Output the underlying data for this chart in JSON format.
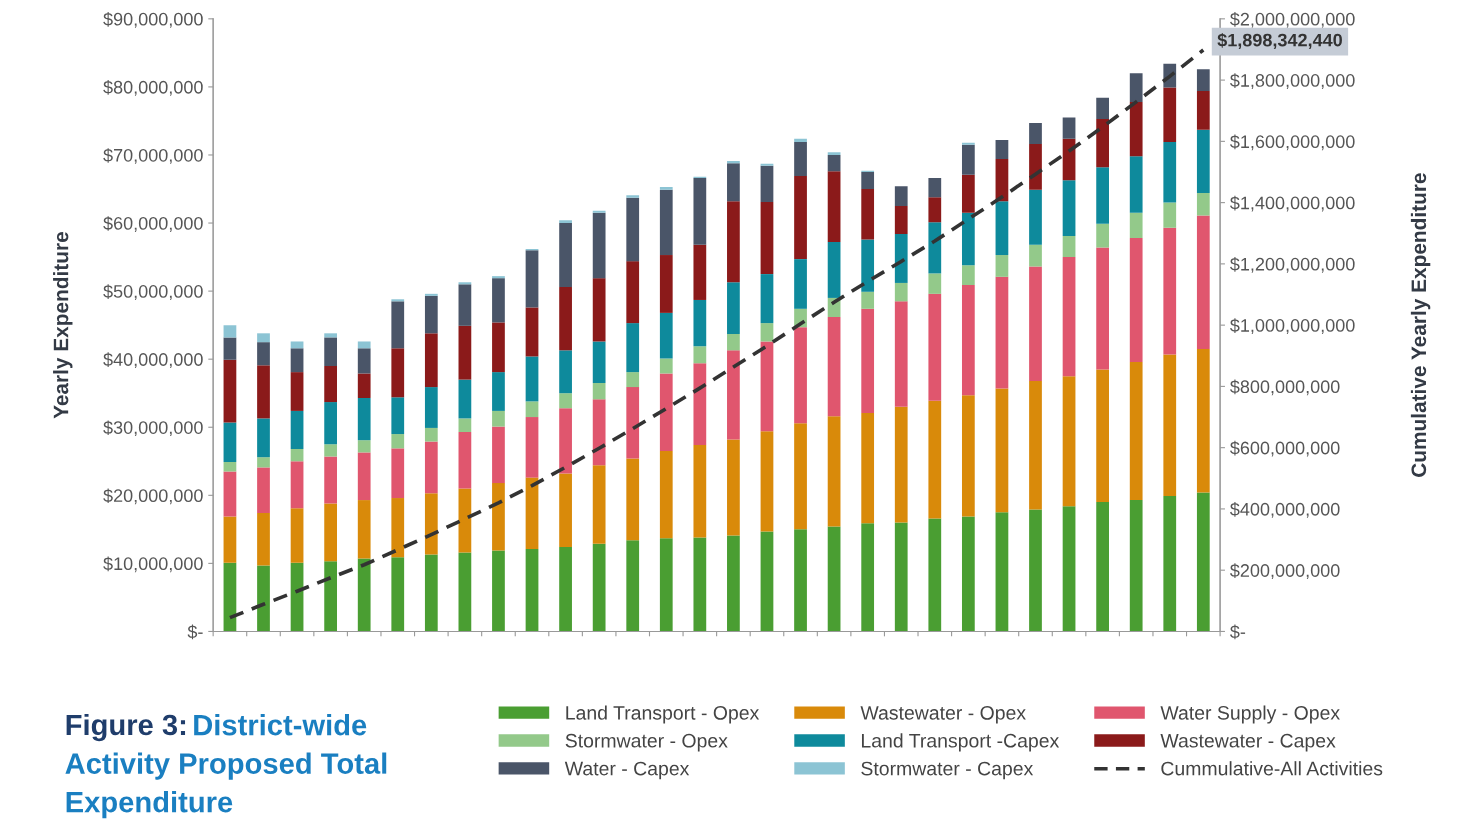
{
  "chart_data": {
    "type": "bar",
    "stacked": true,
    "title": "Figure 3:",
    "subtitle": "District-wide\nActivity Proposed Total\nExpenditure",
    "ylabel": "Yearly Expenditure",
    "y2label": "Cumulative Yearly Expenditure",
    "categories": [
      null,
      null,
      null,
      null,
      null,
      null,
      null,
      null,
      null,
      null,
      null,
      null,
      null,
      null,
      null,
      null,
      null,
      null,
      null,
      null,
      null,
      null,
      null,
      null,
      null,
      null,
      null,
      null,
      null,
      null
    ],
    "ylim": [
      0,
      90000000
    ],
    "yticks": [
      {
        "value": 0,
        "label": "$-"
      },
      {
        "value": 10000000,
        "label": "$10,000,000"
      },
      {
        "value": 20000000,
        "label": "$20,000,000"
      },
      {
        "value": 30000000,
        "label": "$30,000,000"
      },
      {
        "value": 40000000,
        "label": "$40,000,000"
      },
      {
        "value": 50000000,
        "label": "$50,000,000"
      },
      {
        "value": 60000000,
        "label": "$60,000,000"
      },
      {
        "value": 70000000,
        "label": "$70,000,000"
      },
      {
        "value": 80000000,
        "label": "$80,000,000"
      },
      {
        "value": 90000000,
        "label": "$90,000,000"
      }
    ],
    "y2lim": [
      0,
      2000000000
    ],
    "y2ticks": [
      {
        "value": 0,
        "label": "$-"
      },
      {
        "value": 200000000,
        "label": "$200,000,000"
      },
      {
        "value": 400000000,
        "label": "$400,000,000"
      },
      {
        "value": 600000000,
        "label": "$600,000,000"
      },
      {
        "value": 800000000,
        "label": "$800,000,000"
      },
      {
        "value": 1000000000,
        "label": "$1,000,000,000"
      },
      {
        "value": 1200000000,
        "label": "$1,200,000,000"
      },
      {
        "value": 1400000000,
        "label": "$1,400,000,000"
      },
      {
        "value": 1600000000,
        "label": "$1,600,000,000"
      },
      {
        "value": 1800000000,
        "label": "$1,800,000,000"
      },
      {
        "value": 2000000000,
        "label": "$2,000,000,000"
      }
    ],
    "grid": false,
    "legend": "bottom",
    "series": [
      {
        "name": "Land Transport - Opex",
        "color": "#4a9e32",
        "values": [
          10100000,
          9700000,
          10100000,
          10300000,
          10700000,
          10900000,
          11300000,
          11600000,
          11900000,
          12100000,
          12400000,
          12900000,
          13400000,
          13700000,
          13800000,
          14100000,
          14700000,
          15000000,
          15400000,
          15900000,
          16000000,
          16600000,
          16900000,
          17500000,
          17900000,
          18400000,
          19000000,
          19300000,
          19900000,
          20400000
        ]
      },
      {
        "name": "Wastewater - Opex",
        "color": "#d98a0a",
        "values": [
          6800000,
          7700000,
          8000000,
          8500000,
          8600000,
          8700000,
          9000000,
          9400000,
          9900000,
          10500000,
          10800000,
          11500000,
          12000000,
          12800000,
          13600000,
          14100000,
          14700000,
          15600000,
          16200000,
          16200000,
          17000000,
          17300000,
          17800000,
          18200000,
          18900000,
          19100000,
          19500000,
          20300000,
          20800000,
          21100000
        ]
      },
      {
        "name": "Water Supply - Opex",
        "color": "#e0566e",
        "values": [
          6600000,
          6700000,
          6900000,
          6900000,
          7000000,
          7300000,
          7600000,
          8300000,
          8300000,
          8900000,
          9600000,
          9700000,
          10500000,
          11400000,
          12000000,
          13100000,
          13200000,
          14100000,
          14600000,
          15300000,
          15500000,
          15700000,
          16200000,
          16400000,
          16800000,
          17500000,
          17900000,
          18200000,
          18600000,
          19600000
        ]
      },
      {
        "name": "Stormwater - Opex",
        "color": "#93c98a",
        "values": [
          1400000,
          1500000,
          1800000,
          1800000,
          1800000,
          2100000,
          2000000,
          2000000,
          2300000,
          2300000,
          2200000,
          2400000,
          2200000,
          2200000,
          2500000,
          2400000,
          2700000,
          2700000,
          2800000,
          2500000,
          2700000,
          3000000,
          2900000,
          3200000,
          3200000,
          3100000,
          3500000,
          3700000,
          3700000,
          3300000
        ]
      },
      {
        "name": "Land Transport -Capex",
        "color": "#0e8a9c",
        "values": [
          5800000,
          5700000,
          5600000,
          6200000,
          6200000,
          5400000,
          6000000,
          5700000,
          5700000,
          6600000,
          6300000,
          6100000,
          7200000,
          6700000,
          6800000,
          7600000,
          7200000,
          7300000,
          8200000,
          7700000,
          7200000,
          7500000,
          7700000,
          7900000,
          8100000,
          8200000,
          8300000,
          8300000,
          8900000,
          9300000
        ]
      },
      {
        "name": "Wastewater - Capex",
        "color": "#8b1a1a",
        "values": [
          9200000,
          7800000,
          5700000,
          5300000,
          3600000,
          7200000,
          7900000,
          7900000,
          7300000,
          7200000,
          9300000,
          9300000,
          9100000,
          8500000,
          8100000,
          11900000,
          10600000,
          12200000,
          10400000,
          7400000,
          4100000,
          3700000,
          5600000,
          6200000,
          6700000,
          6100000,
          7100000,
          8000000,
          8000000,
          5700000
        ]
      },
      {
        "name": "Water - Capex",
        "color": "#4a5568",
        "values": [
          3300000,
          3400000,
          3500000,
          4200000,
          3700000,
          6900000,
          5500000,
          6100000,
          6500000,
          8400000,
          9400000,
          9600000,
          9300000,
          9600000,
          9800000,
          5600000,
          5300000,
          5000000,
          2400000,
          2500000,
          2900000,
          2800000,
          4400000,
          2800000,
          3100000,
          3100000,
          3100000,
          4200000,
          3500000,
          3200000
        ]
      },
      {
        "name": "Stormwater - Capex",
        "color": "#8cc4d4",
        "values": [
          1800000,
          1300000,
          1000000,
          600000,
          1000000,
          300000,
          300000,
          300000,
          300000,
          200000,
          400000,
          300000,
          400000,
          400000,
          200000,
          300000,
          300000,
          500000,
          400000,
          200000,
          0,
          0,
          300000,
          0,
          0,
          0,
          0,
          0,
          0,
          0
        ]
      },
      {
        "name": "Cummulative-All Activities",
        "type": "line",
        "axis": "y2",
        "color": "#333333",
        "line_style": "dashed",
        "marker": "none",
        "values": [
          45000000,
          88800000,
          131400000,
          175200000,
          217800000,
          266600000,
          316200000,
          367500000,
          419700000,
          475900000,
          536300000,
          598100000,
          662200000,
          727500000,
          794300000,
          863400000,
          932100000,
          1004500000,
          1074900000,
          1142600000,
          1208000000,
          1274600000,
          1346100000,
          1418300000,
          1493000000,
          1568500000,
          1646900000,
          1728900000,
          1812300000,
          1898342440
        ],
        "value_labels": [
          null,
          null,
          null,
          null,
          null,
          null,
          null,
          null,
          null,
          null,
          null,
          null,
          null,
          null,
          null,
          null,
          null,
          null,
          null,
          null,
          null,
          null,
          null,
          null,
          null,
          null,
          null,
          null,
          null,
          "$1,898,342,440"
        ]
      }
    ]
  }
}
